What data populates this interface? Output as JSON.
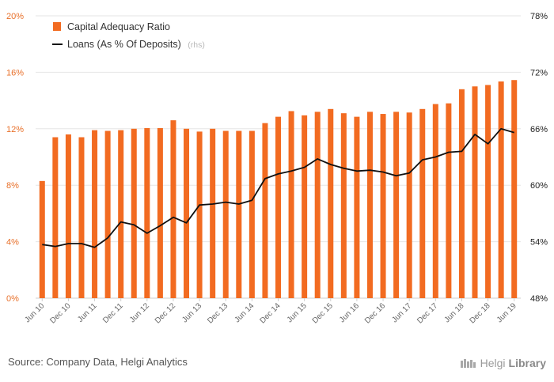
{
  "chart_data": {
    "type": "bar+line",
    "categories": [
      "Jun 10",
      "Sep 10",
      "Dec 10",
      "Mar 11",
      "Jun 11",
      "Sep 11",
      "Dec 11",
      "Mar 12",
      "Jun 12",
      "Sep 12",
      "Dec 12",
      "Mar 13",
      "Jun 13",
      "Sep 13",
      "Dec 13",
      "Mar 14",
      "Jun 14",
      "Sep 14",
      "Dec 14",
      "Mar 15",
      "Jun 15",
      "Sep 15",
      "Dec 15",
      "Mar 16",
      "Jun 16",
      "Sep 16",
      "Dec 16",
      "Mar 17",
      "Jun 17",
      "Sep 17",
      "Dec 17",
      "Mar 18",
      "Jun 18",
      "Sep 18",
      "Dec 18",
      "Mar 19",
      "Jun 19"
    ],
    "x_tick_labels": [
      "Jun 10",
      "Dec 10",
      "Jun 11",
      "Dec 11",
      "Jun 12",
      "Dec 12",
      "Jun 13",
      "Dec 13",
      "Jun 14",
      "Dec 14",
      "Jun 15",
      "Dec 15",
      "Jun 16",
      "Dec 16",
      "Jun 17",
      "Dec 17",
      "Jun 18",
      "Dec 18",
      "Jun 19"
    ],
    "series": [
      {
        "name": "Capital Adequacy Ratio",
        "type": "bar",
        "axis": "left",
        "color": "#f26b21",
        "values": [
          8.3,
          11.4,
          11.6,
          11.4,
          11.9,
          11.85,
          11.9,
          12.0,
          12.05,
          12.05,
          12.6,
          12.0,
          11.8,
          12.0,
          11.85,
          11.85,
          11.85,
          12.4,
          12.85,
          13.25,
          12.95,
          13.2,
          13.4,
          13.1,
          12.85,
          13.2,
          13.05,
          13.2,
          13.15,
          13.4,
          13.75,
          13.8,
          14.8,
          15.0,
          15.1,
          15.35,
          15.45
        ]
      },
      {
        "name": "Loans (As % Of Deposits)",
        "axis_note": "(rhs)",
        "type": "line",
        "axis": "right",
        "color": "#111111",
        "values": [
          53.7,
          53.5,
          53.8,
          53.8,
          53.4,
          54.4,
          56.1,
          55.8,
          54.9,
          55.7,
          56.6,
          56.0,
          57.9,
          58.0,
          58.2,
          58.0,
          58.4,
          60.7,
          61.2,
          61.5,
          61.9,
          62.8,
          62.2,
          61.8,
          61.5,
          61.6,
          61.4,
          61.0,
          61.3,
          62.7,
          63.0,
          63.5,
          63.6,
          65.4,
          64.4,
          66.0,
          65.6
        ]
      }
    ],
    "y_left": {
      "ticks": [
        "0%",
        "4%",
        "8%",
        "12%",
        "16%",
        "20%"
      ],
      "min": 0,
      "max": 20
    },
    "y_right": {
      "ticks": [
        "48%",
        "54%",
        "60%",
        "66%",
        "72%",
        "78%"
      ],
      "min": 48,
      "max": 78
    },
    "grid": true,
    "legend_position": "top-left"
  },
  "footer": {
    "source": "Source: Company Data, Helgi Analytics",
    "brand_name_1": "Helgi",
    "brand_name_2": "Library"
  },
  "colors": {
    "bar": "#f26b21",
    "line": "#111111",
    "grid": "#e6e6e6",
    "left_axis_text": "#e8702a"
  }
}
